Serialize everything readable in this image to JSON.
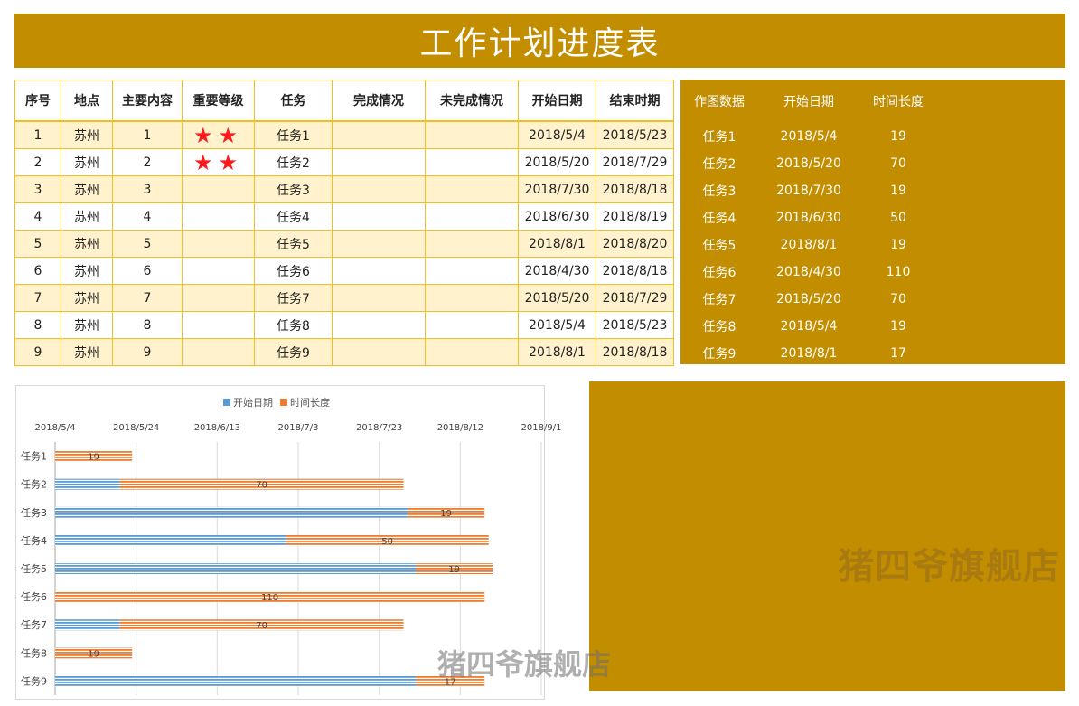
{
  "title": "工作计划进度表",
  "table": {
    "headers": [
      "序号",
      "地点",
      "主要内容",
      "重要等级",
      "任务",
      "完成情况",
      "未完成情况",
      "开始日期",
      "结束时期"
    ],
    "rows": [
      {
        "no": "1",
        "place": "苏州",
        "content": "1",
        "level": "★★",
        "task": "任务1",
        "done": "",
        "undone": "",
        "start": "2018/5/4",
        "end": "2018/5/23"
      },
      {
        "no": "2",
        "place": "苏州",
        "content": "2",
        "level": "★★",
        "task": "任务2",
        "done": "",
        "undone": "",
        "start": "2018/5/20",
        "end": "2018/7/29"
      },
      {
        "no": "3",
        "place": "苏州",
        "content": "3",
        "level": "",
        "task": "任务3",
        "done": "",
        "undone": "",
        "start": "2018/7/30",
        "end": "2018/8/18"
      },
      {
        "no": "4",
        "place": "苏州",
        "content": "4",
        "level": "",
        "task": "任务4",
        "done": "",
        "undone": "",
        "start": "2018/6/30",
        "end": "2018/8/19"
      },
      {
        "no": "5",
        "place": "苏州",
        "content": "5",
        "level": "",
        "task": "任务5",
        "done": "",
        "undone": "",
        "start": "2018/8/1",
        "end": "2018/8/20"
      },
      {
        "no": "6",
        "place": "苏州",
        "content": "6",
        "level": "",
        "task": "任务6",
        "done": "",
        "undone": "",
        "start": "2018/4/30",
        "end": "2018/8/18"
      },
      {
        "no": "7",
        "place": "苏州",
        "content": "7",
        "level": "",
        "task": "任务7",
        "done": "",
        "undone": "",
        "start": "2018/5/20",
        "end": "2018/7/29"
      },
      {
        "no": "8",
        "place": "苏州",
        "content": "8",
        "level": "",
        "task": "任务8",
        "done": "",
        "undone": "",
        "start": "2018/5/4",
        "end": "2018/5/23"
      },
      {
        "no": "9",
        "place": "苏州",
        "content": "9",
        "level": "",
        "task": "任务9",
        "done": "",
        "undone": "",
        "start": "2018/8/1",
        "end": "2018/8/18"
      }
    ]
  },
  "side_table": {
    "headers": [
      "作图数据",
      "开始日期",
      "时间长度"
    ],
    "rows": [
      {
        "task": "任务1",
        "start": "2018/5/4",
        "len": "19"
      },
      {
        "task": "任务2",
        "start": "2018/5/20",
        "len": "70"
      },
      {
        "task": "任务3",
        "start": "2018/7/30",
        "len": "19"
      },
      {
        "task": "任务4",
        "start": "2018/6/30",
        "len": "50"
      },
      {
        "task": "任务5",
        "start": "2018/8/1",
        "len": "19"
      },
      {
        "task": "任务6",
        "start": "2018/4/30",
        "len": "110"
      },
      {
        "task": "任务7",
        "start": "2018/5/20",
        "len": "70"
      },
      {
        "task": "任务8",
        "start": "2018/5/4",
        "len": "19"
      },
      {
        "task": "任务9",
        "start": "2018/8/1",
        "len": "17"
      }
    ]
  },
  "watermark": "猪四爷旗舰店",
  "colors": {
    "panel": "#C28E00",
    "start_series": "#5B9BD5",
    "length_series": "#ED7D31",
    "row_band": "#FFF2CC",
    "border": "#F0C020",
    "star": "#FF1A1A"
  },
  "chart_data": {
    "type": "bar",
    "orientation": "horizontal",
    "stacked": true,
    "categories": [
      "任务1",
      "任务2",
      "任务3",
      "任务4",
      "任务5",
      "任务6",
      "任务7",
      "任务8",
      "任务9"
    ],
    "x_axis_position": "top",
    "x_ticks": [
      "2018/5/4",
      "2018/5/24",
      "2018/6/13",
      "2018/7/3",
      "2018/7/23",
      "2018/8/12",
      "2018/9/1"
    ],
    "xlim": [
      "2018/5/4",
      "2018/9/1"
    ],
    "grid": true,
    "legend": "top",
    "series": [
      {
        "name": "开始日期",
        "values": [
          "2018/5/4",
          "2018/5/20",
          "2018/7/30",
          "2018/6/30",
          "2018/8/1",
          "2018/4/30",
          "2018/5/20",
          "2018/5/4",
          "2018/8/1"
        ],
        "color": "#5B9BD5"
      },
      {
        "name": "时间长度",
        "values": [
          19,
          70,
          19,
          50,
          19,
          110,
          70,
          19,
          17
        ],
        "color": "#ED7D31"
      }
    ]
  }
}
